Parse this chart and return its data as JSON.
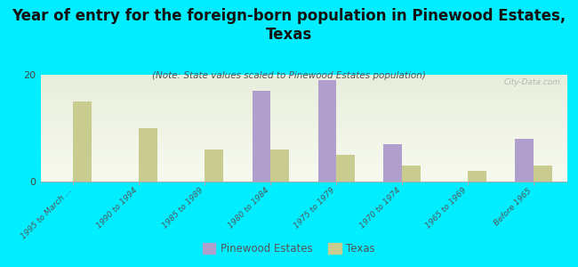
{
  "title": "Year of entry for the foreign-born population in Pinewood Estates,\nTexas",
  "subtitle": "(Note: State values scaled to Pinewood Estates population)",
  "categories": [
    "1995 to March ...",
    "1990 to 1994",
    "1985 to 1989",
    "1980 to 1984",
    "1975 to 1979",
    "1970 to 1974",
    "1965 to 1969",
    "Before 1965"
  ],
  "pinewood_values": [
    0,
    0,
    0,
    17,
    19,
    7,
    0,
    8
  ],
  "texas_values": [
    15,
    10,
    6,
    6,
    5,
    3,
    2,
    3
  ],
  "pinewood_color": "#b09fcc",
  "texas_color": "#c8cc8f",
  "background_color": "#00eeff",
  "ylim": [
    0,
    20
  ],
  "yticks": [
    0,
    20
  ],
  "bar_width": 0.28,
  "title_fontsize": 12,
  "subtitle_fontsize": 7.5,
  "watermark": "City-Data.com",
  "legend_label_pinewood": "Pinewood Estates",
  "legend_label_texas": "Texas"
}
